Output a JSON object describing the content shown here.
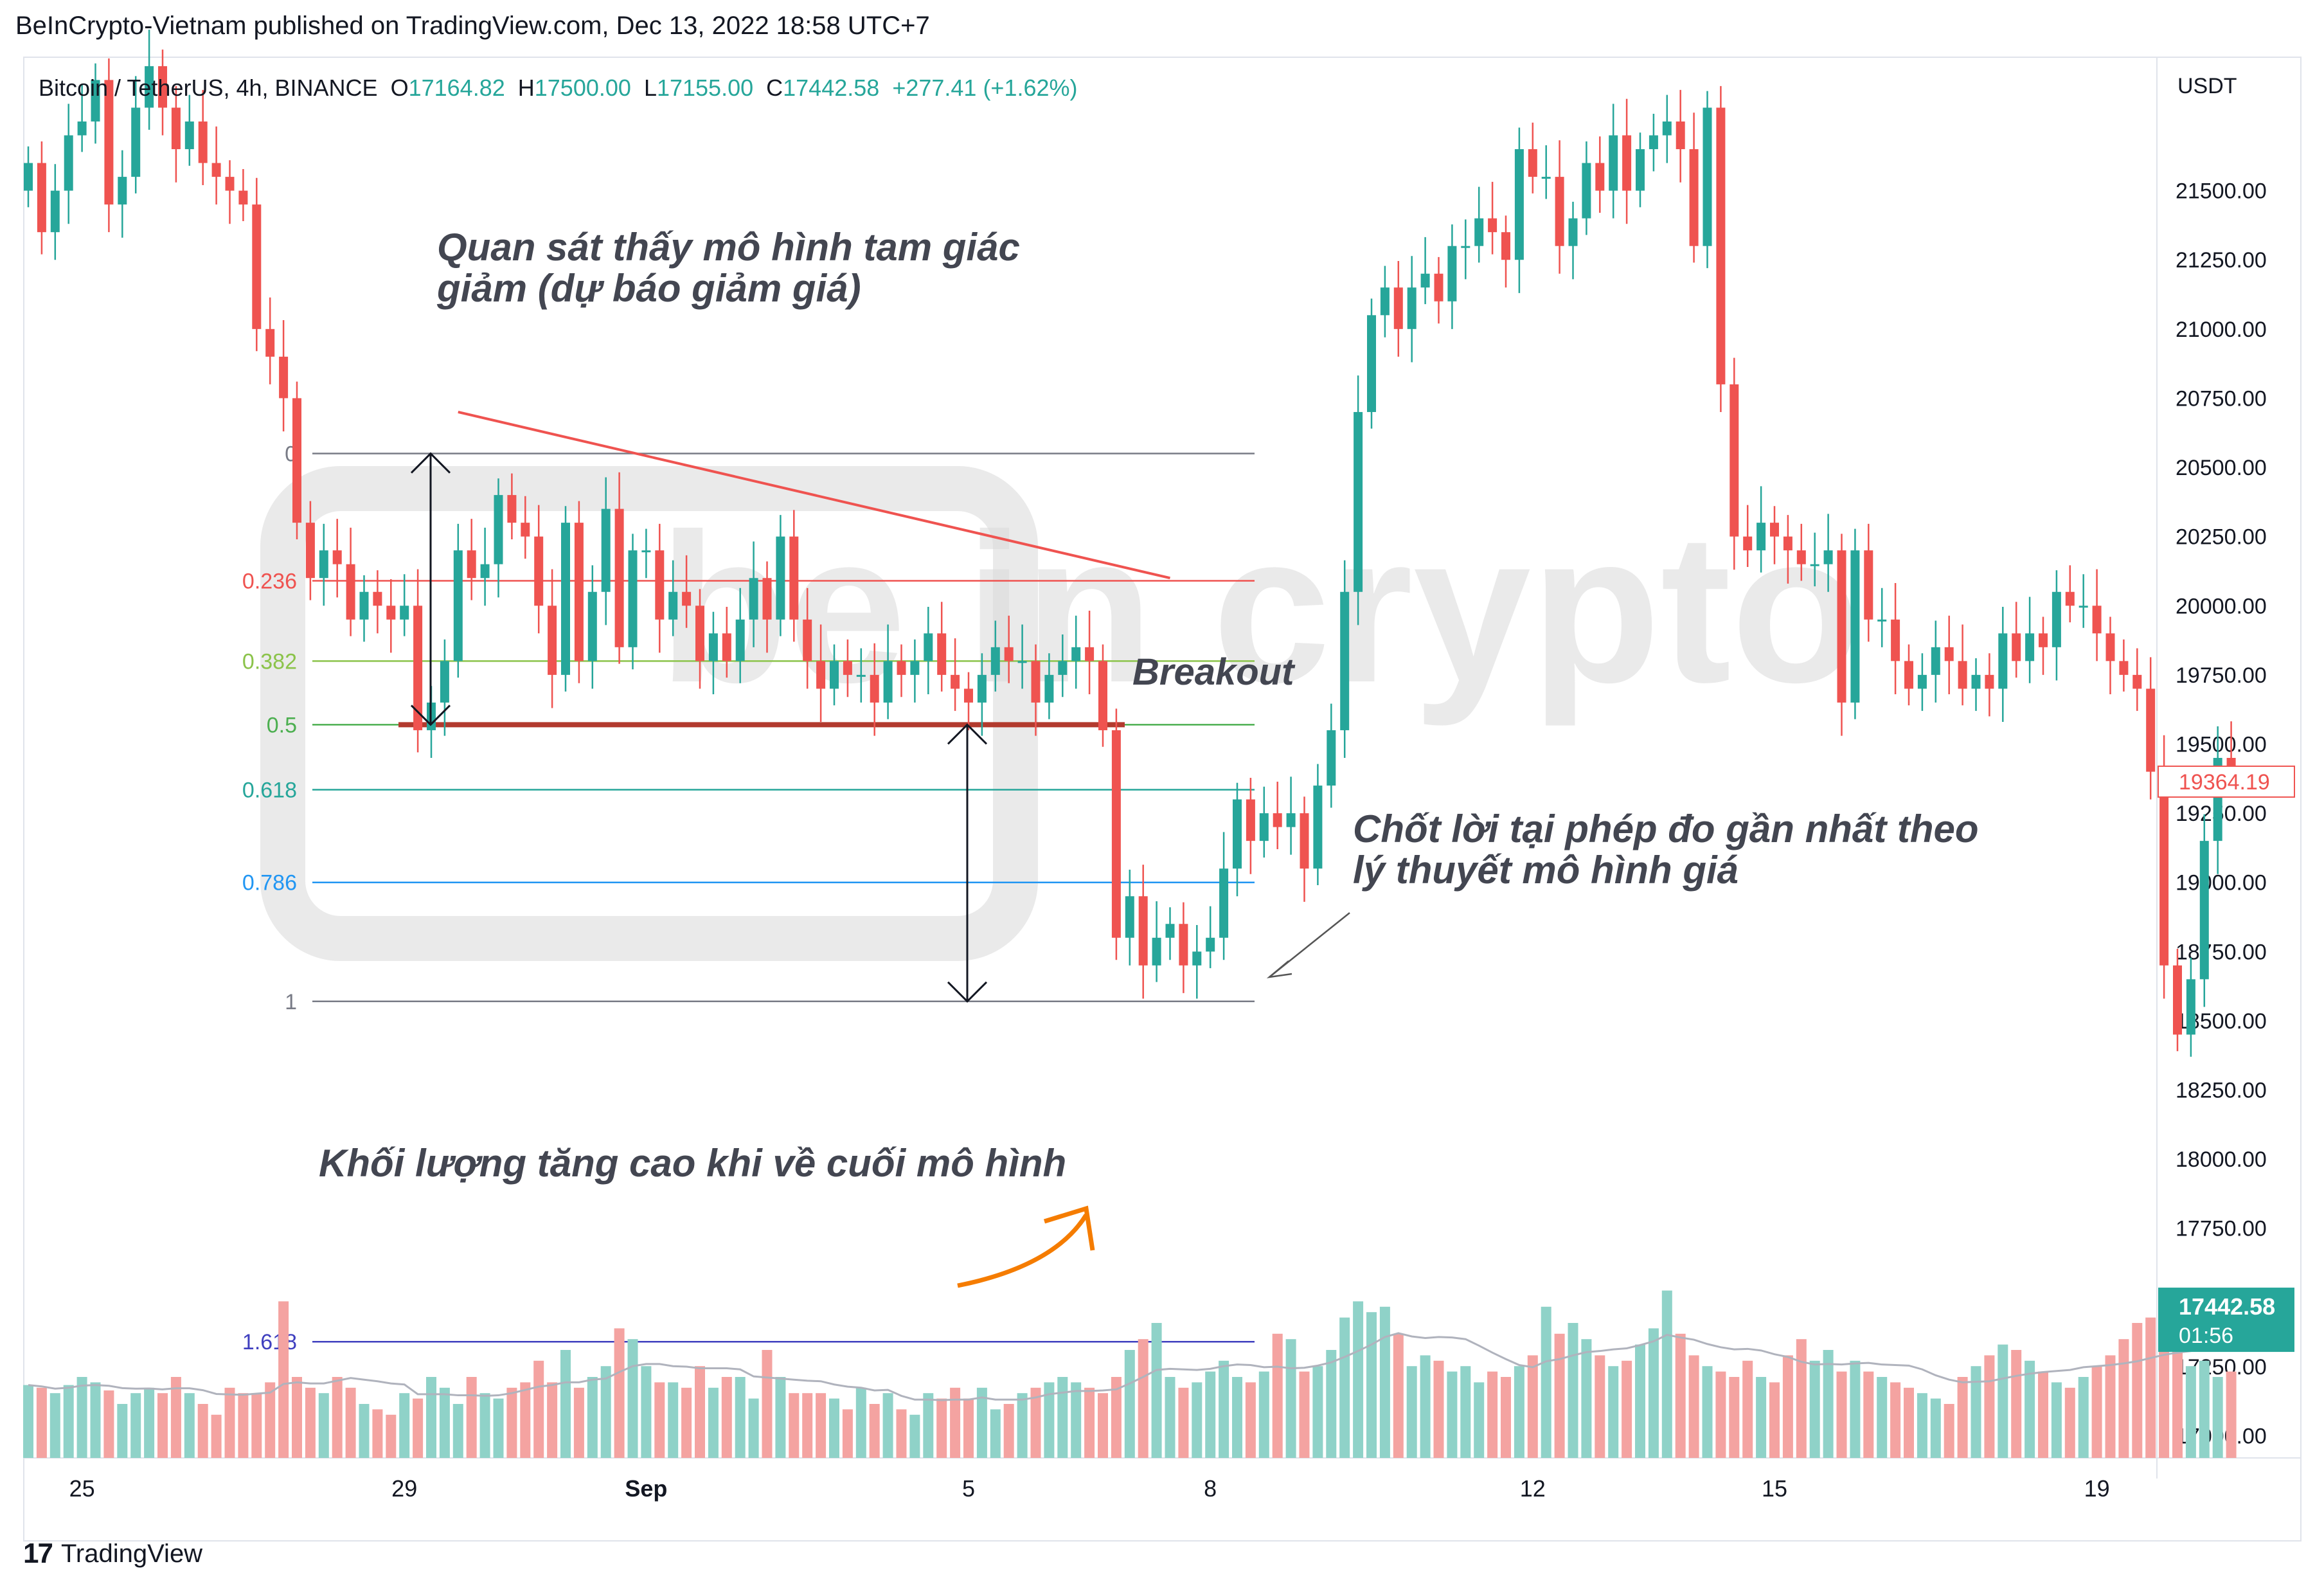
{
  "header": {
    "publisher": "BeInCrypto-Vietnam published on TradingView.com, Dec 13, 2022 18:58 UTC+7"
  },
  "legend": {
    "symbol": "Bitcoin / TetherUS, 4h, BINANCE",
    "open_label": "O",
    "open": "17164.82",
    "high_label": "H",
    "high": "17500.00",
    "low_label": "L",
    "low": "17155.00",
    "close_label": "C",
    "close": "17442.58",
    "change": "+277.41 (+1.62%)"
  },
  "footer": {
    "brand": "TradingView"
  },
  "watermark": "be in crypto",
  "chart_data": {
    "type": "candlestick",
    "currency": "USDT",
    "price_axis_ticks": [
      "21500.00",
      "21250.00",
      "21000.00",
      "20750.00",
      "20500.00",
      "20250.00",
      "20000.00",
      "19750.00",
      "19500.00",
      "19250.00",
      "19000.00",
      "18750.00",
      "18500.00",
      "18250.00",
      "18000.00",
      "17750.00",
      "17500.00",
      "17250.00",
      "17000.00"
    ],
    "price_range": [
      16920,
      21980
    ],
    "x_axis_labels": [
      {
        "label": "25",
        "bar": 4
      },
      {
        "label": "29",
        "bar": 28
      },
      {
        "label": "Sep",
        "bar": 46
      },
      {
        "label": "5",
        "bar": 70
      },
      {
        "label": "8",
        "bar": 88
      },
      {
        "label": "12",
        "bar": 112
      },
      {
        "label": "15",
        "bar": 130
      },
      {
        "label": "19",
        "bar": 154
      }
    ],
    "current_price": {
      "value": "17442.58",
      "countdown": "01:56",
      "color": "#26a69a"
    },
    "marked_price": {
      "value": "19364.19",
      "color": "#ef5350"
    },
    "colors": {
      "up": "#26a69a",
      "down": "#ef5350",
      "volume_up": "#8fd2c8",
      "volume_down": "#f4a3a1"
    },
    "fibonacci": [
      {
        "level": "0",
        "price": 20550,
        "color": "#787b86"
      },
      {
        "level": "0.236",
        "price": 20090,
        "color": "#ef5350"
      },
      {
        "level": "0.382",
        "price": 19800,
        "color": "#8bc34a"
      },
      {
        "level": "0.5",
        "price": 19570,
        "color": "#4caf50"
      },
      {
        "level": "0.618",
        "price": 19335,
        "color": "#26a69a"
      },
      {
        "level": "0.786",
        "price": 19000,
        "color": "#2196f3"
      },
      {
        "level": "1",
        "price": 18570,
        "color": "#787b86"
      },
      {
        "level": "1.618",
        "price": 17340,
        "color": "#3f3fbf"
      }
    ],
    "breakout_level_price": 19570,
    "trendline": {
      "from": {
        "bar": 32,
        "price": 20700
      },
      "to": {
        "bar": 85,
        "price": 20100
      },
      "color": "#ef5350"
    },
    "annotations": {
      "pattern": "Quan sát thấy mô hình tam giác\ngiảm (dự báo giảm giá)",
      "breakout": "Breakout",
      "take_profit": "Chốt lời tại phép đo gần nhất theo\nlý thuyết mô hình giá",
      "volume": "Khối lượng tăng cao khi về cuối mô hình"
    },
    "closes": [
      21600,
      21350,
      21500,
      21700,
      21750,
      21900,
      21450,
      21550,
      21800,
      21950,
      21800,
      21650,
      21750,
      21600,
      21550,
      21500,
      21450,
      21000,
      20900,
      20750,
      20300,
      20100,
      20200,
      20150,
      19950,
      20050,
      20000,
      19950,
      20000,
      19550,
      19650,
      19800,
      20200,
      20100,
      20150,
      20400,
      20300,
      20250,
      20000,
      19750,
      20300,
      19800,
      20050,
      20350,
      19850,
      20200,
      20200,
      19950,
      20050,
      20000,
      19800,
      19900,
      19800,
      19950,
      20100,
      19950,
      20250,
      19950,
      19800,
      19700,
      19800,
      19750,
      19750,
      19650,
      19800,
      19750,
      19800,
      19900,
      19750,
      19700,
      19650,
      19750,
      19850,
      19800,
      19800,
      19650,
      19750,
      19800,
      19850,
      19800,
      19550,
      18800,
      18950,
      18700,
      18800,
      18850,
      18700,
      18750,
      18800,
      19050,
      19300,
      19150,
      19250,
      19200,
      19250,
      19050,
      19350,
      19550,
      20050,
      20700,
      21050,
      21150,
      21000,
      21150,
      21200,
      21100,
      21300,
      21300,
      21400,
      21350,
      21250,
      21650,
      21550,
      21550,
      21300,
      21400,
      21600,
      21500,
      21700,
      21500,
      21650,
      21700,
      21750,
      21650,
      21300,
      21800,
      20800,
      20250,
      20200,
      20300,
      20250,
      20200,
      20150,
      20150,
      20200,
      19650,
      20200,
      19950,
      19950,
      19800,
      19700,
      19750,
      19850,
      19800,
      19700,
      19750,
      19700,
      19900,
      19800,
      19900,
      19850,
      20050,
      20000,
      20000,
      19900,
      19800,
      19750,
      19700,
      19400,
      18700,
      18450,
      18650,
      19150,
      19450,
      19400
    ],
    "volume_rel": [
      0.27,
      0.26,
      0.24,
      0.27,
      0.3,
      0.28,
      0.25,
      0.2,
      0.24,
      0.26,
      0.24,
      0.3,
      0.24,
      0.2,
      0.16,
      0.26,
      0.24,
      0.24,
      0.28,
      0.58,
      0.3,
      0.26,
      0.24,
      0.3,
      0.26,
      0.2,
      0.18,
      0.16,
      0.24,
      0.22,
      0.3,
      0.26,
      0.2,
      0.3,
      0.24,
      0.22,
      0.26,
      0.28,
      0.36,
      0.28,
      0.4,
      0.26,
      0.3,
      0.34,
      0.48,
      0.44,
      0.34,
      0.28,
      0.28,
      0.26,
      0.34,
      0.26,
      0.3,
      0.3,
      0.22,
      0.4,
      0.3,
      0.24,
      0.24,
      0.24,
      0.22,
      0.18,
      0.26,
      0.2,
      0.24,
      0.18,
      0.16,
      0.24,
      0.22,
      0.26,
      0.22,
      0.26,
      0.18,
      0.2,
      0.24,
      0.26,
      0.28,
      0.3,
      0.28,
      0.26,
      0.24,
      0.3,
      0.4,
      0.44,
      0.5,
      0.3,
      0.26,
      0.28,
      0.32,
      0.36,
      0.3,
      0.28,
      0.32,
      0.46,
      0.44,
      0.32,
      0.34,
      0.4,
      0.52,
      0.58,
      0.54,
      0.56,
      0.46,
      0.34,
      0.38,
      0.36,
      0.32,
      0.34,
      0.28,
      0.32,
      0.3,
      0.34,
      0.38,
      0.56,
      0.46,
      0.5,
      0.44,
      0.38,
      0.34,
      0.36,
      0.42,
      0.48,
      0.62,
      0.46,
      0.38,
      0.34,
      0.32,
      0.3,
      0.36,
      0.3,
      0.28,
      0.38,
      0.44,
      0.36,
      0.4,
      0.32,
      0.36,
      0.32,
      0.3,
      0.28,
      0.26,
      0.24,
      0.22,
      0.2,
      0.3,
      0.34,
      0.38,
      0.42,
      0.4,
      0.36,
      0.32,
      0.28,
      0.26,
      0.3,
      0.34,
      0.38,
      0.44,
      0.5,
      0.52,
      0.48,
      0.4,
      0.34,
      0.36,
      0.3,
      0.32
    ]
  }
}
